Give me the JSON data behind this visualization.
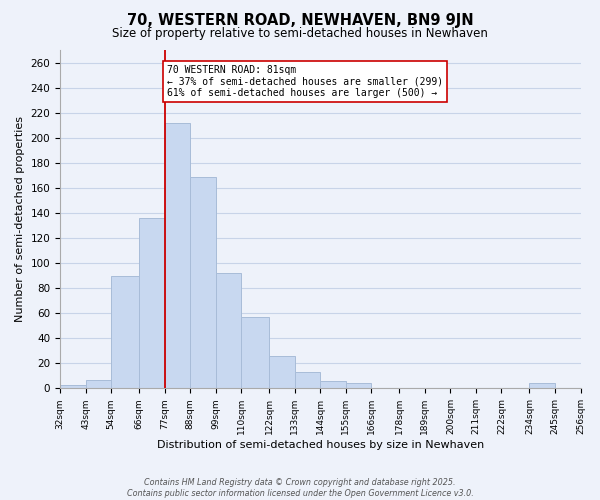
{
  "title": "70, WESTERN ROAD, NEWHAVEN, BN9 9JN",
  "subtitle": "Size of property relative to semi-detached houses in Newhaven",
  "xlabel": "Distribution of semi-detached houses by size in Newhaven",
  "ylabel": "Number of semi-detached properties",
  "bins": [
    32,
    43,
    54,
    66,
    77,
    88,
    99,
    110,
    122,
    133,
    144,
    155,
    166,
    178,
    189,
    200,
    211,
    222,
    234,
    245,
    256
  ],
  "bin_labels": [
    "32sqm",
    "43sqm",
    "54sqm",
    "66sqm",
    "77sqm",
    "88sqm",
    "99sqm",
    "110sqm",
    "122sqm",
    "133sqm",
    "144sqm",
    "155sqm",
    "166sqm",
    "178sqm",
    "189sqm",
    "200sqm",
    "211sqm",
    "222sqm",
    "234sqm",
    "245sqm",
    "256sqm"
  ],
  "values": [
    3,
    7,
    90,
    136,
    212,
    169,
    92,
    57,
    26,
    13,
    6,
    4,
    0,
    0,
    0,
    0,
    0,
    0,
    4,
    0
  ],
  "bar_color": "#c8d8f0",
  "bar_edgecolor": "#a8bcd8",
  "property_bin_index": 4,
  "vline_color": "#cc0000",
  "annotation_text": "70 WESTERN ROAD: 81sqm\n← 37% of semi-detached houses are smaller (299)\n61% of semi-detached houses are larger (500) →",
  "annotation_box_color": "#ffffff",
  "annotation_box_edgecolor": "#cc0000",
  "ylim": [
    0,
    270
  ],
  "yticks": [
    0,
    20,
    40,
    60,
    80,
    100,
    120,
    140,
    160,
    180,
    200,
    220,
    240,
    260
  ],
  "grid_color": "#c8d4e8",
  "background_color": "#eef2fa",
  "footer_line1": "Contains HM Land Registry data © Crown copyright and database right 2025.",
  "footer_line2": "Contains public sector information licensed under the Open Government Licence v3.0."
}
